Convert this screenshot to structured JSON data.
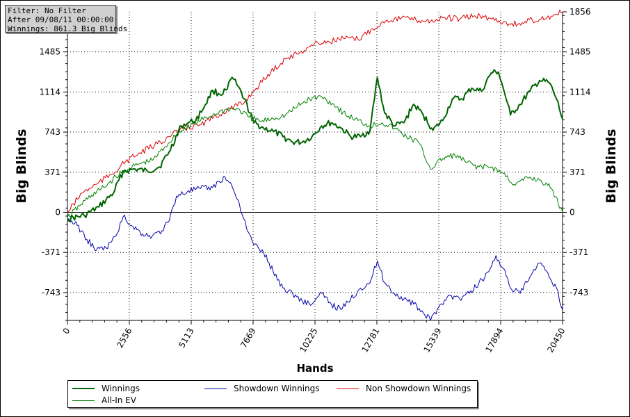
{
  "info_box": {
    "line1": "Filter: No Filter",
    "line2": "After 09/08/11 00:00:00",
    "line3": "Winnings: 861.3 Big Blinds"
  },
  "chart_data": {
    "type": "line",
    "xlabel": "Hands",
    "ylabel": "Big Blinds",
    "xlim": [
      0,
      20450
    ],
    "ylim": [
      -1000,
      1856
    ],
    "x_ticks": [
      "0",
      "2556",
      "5113",
      "7669",
      "10225",
      "12781",
      "15339",
      "17894",
      "20450"
    ],
    "y_ticks": [
      "1856",
      "1485",
      "1114",
      "743",
      "371",
      "0",
      "-371",
      "-743"
    ],
    "grid": true,
    "legend_position": "bottom",
    "series": [
      {
        "name": "Winnings",
        "color": "#006400",
        "x": [
          0,
          700,
          1300,
          1900,
          2300,
          2800,
          3300,
          3800,
          4200,
          4700,
          5000,
          5300,
          5700,
          6000,
          6300,
          6600,
          6800,
          7000,
          7300,
          7700,
          8100,
          8500,
          8900,
          9300,
          9700,
          10100,
          10500,
          10900,
          11300,
          11700,
          12100,
          12500,
          12800,
          13100,
          13500,
          13900,
          14300,
          14700,
          15100,
          15500,
          15900,
          16300,
          16700,
          17100,
          17500,
          17800,
          18000,
          18300,
          18700,
          19100,
          19500,
          19900,
          20200,
          20450
        ],
        "y": [
          -60,
          -30,
          50,
          180,
          380,
          400,
          380,
          420,
          560,
          800,
          830,
          850,
          1000,
          1130,
          1090,
          1140,
          1250,
          1180,
          1050,
          830,
          780,
          750,
          700,
          650,
          650,
          700,
          800,
          830,
          780,
          700,
          700,
          760,
          1250,
          920,
          800,
          830,
          1000,
          900,
          760,
          850,
          1050,
          1050,
          1150,
          1120,
          1290,
          1300,
          1150,
          900,
          1000,
          1120,
          1220,
          1200,
          1050,
          861
        ]
      },
      {
        "name": "All-In EV",
        "color": "#008000",
        "x": [
          0,
          500,
          1000,
          1500,
          2000,
          2500,
          3000,
          3500,
          4000,
          4500,
          5000,
          5500,
          6000,
          6500,
          7000,
          7500,
          8000,
          8500,
          9000,
          9500,
          10000,
          10500,
          11000,
          11500,
          12000,
          12500,
          13000,
          13500,
          14000,
          14500,
          15000,
          15500,
          16000,
          16500,
          17000,
          17500,
          18000,
          18500,
          19000,
          19500,
          20000,
          20450
        ],
        "y": [
          -50,
          60,
          160,
          230,
          330,
          400,
          450,
          480,
          600,
          720,
          800,
          850,
          900,
          950,
          960,
          880,
          840,
          870,
          900,
          980,
          1050,
          1070,
          1000,
          900,
          850,
          800,
          830,
          780,
          700,
          650,
          400,
          500,
          530,
          460,
          420,
          420,
          360,
          250,
          320,
          300,
          220,
          0
        ]
      },
      {
        "name": "Showdown Winnings",
        "color": "#0000aa",
        "x": [
          0,
          400,
          800,
          1200,
          1600,
          2000,
          2300,
          2700,
          3100,
          3500,
          3900,
          4200,
          4500,
          5000,
          5500,
          6000,
          6500,
          6800,
          7100,
          7400,
          7700,
          8100,
          8500,
          8900,
          9300,
          9700,
          10100,
          10500,
          10900,
          11300,
          11700,
          12100,
          12500,
          12800,
          13100,
          13500,
          13900,
          14300,
          14700,
          15000,
          15400,
          15800,
          16200,
          16600,
          17000,
          17400,
          17700,
          18000,
          18300,
          18700,
          19100,
          19500,
          19900,
          20200,
          20450
        ],
        "y": [
          -60,
          -120,
          -250,
          -350,
          -330,
          -220,
          -40,
          -130,
          -200,
          -220,
          -170,
          -80,
          150,
          200,
          220,
          230,
          330,
          240,
          80,
          -150,
          -300,
          -370,
          -550,
          -700,
          -750,
          -820,
          -850,
          -750,
          -850,
          -900,
          -800,
          -700,
          -650,
          -450,
          -650,
          -750,
          -800,
          -850,
          -930,
          -1000,
          -850,
          -770,
          -800,
          -750,
          -650,
          -550,
          -400,
          -520,
          -700,
          -750,
          -600,
          -470,
          -600,
          -700,
          -900
        ]
      },
      {
        "name": "Non Showdown Winnings",
        "color": "#dd0000",
        "x": [
          0,
          600,
          1200,
          1800,
          2400,
          3000,
          3600,
          4200,
          4800,
          5400,
          6000,
          6600,
          7200,
          7800,
          8400,
          9000,
          9600,
          10200,
          10800,
          11400,
          12000,
          12600,
          13200,
          13800,
          14400,
          15000,
          15600,
          16200,
          16800,
          17400,
          18000,
          18600,
          19200,
          19800,
          20450
        ],
        "y": [
          0,
          180,
          260,
          350,
          470,
          550,
          620,
          700,
          780,
          800,
          870,
          950,
          1000,
          1150,
          1300,
          1420,
          1480,
          1560,
          1580,
          1610,
          1600,
          1700,
          1780,
          1800,
          1780,
          1770,
          1800,
          1790,
          1820,
          1800,
          1760,
          1740,
          1780,
          1800,
          1856
        ]
      }
    ]
  }
}
